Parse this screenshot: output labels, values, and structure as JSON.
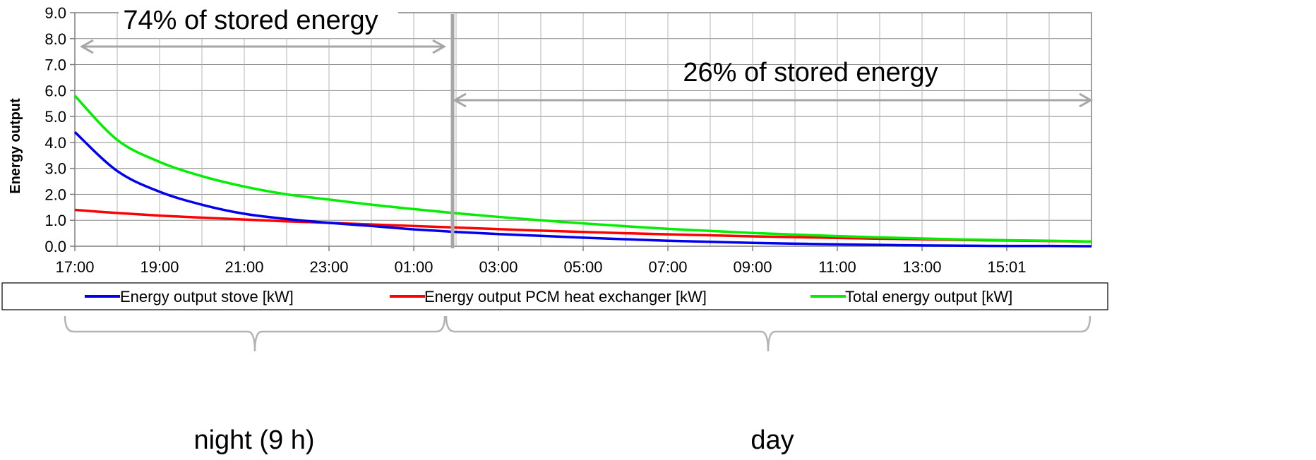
{
  "chart_data": {
    "type": "line",
    "x": [
      "17:00",
      "18:00",
      "19:00",
      "20:00",
      "21:00",
      "22:00",
      "23:00",
      "00:00",
      "01:00",
      "02:00",
      "03:00",
      "04:00",
      "05:00",
      "06:00",
      "07:00",
      "08:00",
      "09:00",
      "10:00",
      "11:00",
      "12:00",
      "13:00",
      "14:00",
      "15:01",
      "16:00",
      "17:00"
    ],
    "x_tick_labels": [
      "17:00",
      "19:00",
      "21:00",
      "23:00",
      "01:00",
      "03:00",
      "05:00",
      "07:00",
      "09:00",
      "11:00",
      "13:00",
      "15:01"
    ],
    "ylabel": "Energy output",
    "ylim": [
      0,
      9
    ],
    "y_tick_labels": [
      "0.0",
      "1.0",
      "2.0",
      "3.0",
      "4.0",
      "5.0",
      "6.0",
      "7.0",
      "8.0",
      "9.0"
    ],
    "grid": true,
    "legend_position": "bottom",
    "series": [
      {
        "name": "Energy output stove [kW]",
        "color": "#0000ee",
        "values": [
          4.4,
          2.9,
          2.1,
          1.6,
          1.25,
          1.05,
          0.9,
          0.78,
          0.65,
          0.55,
          0.47,
          0.4,
          0.33,
          0.27,
          0.21,
          0.17,
          0.13,
          0.1,
          0.07,
          0.05,
          0.03,
          0.02,
          0.01,
          0.01,
          0.0
        ]
      },
      {
        "name": "Energy output PCM heat exchanger [kW]",
        "color": "#ff0000",
        "values": [
          1.4,
          1.28,
          1.18,
          1.1,
          1.03,
          0.96,
          0.9,
          0.84,
          0.78,
          0.72,
          0.66,
          0.6,
          0.55,
          0.5,
          0.46,
          0.42,
          0.38,
          0.35,
          0.32,
          0.29,
          0.27,
          0.24,
          0.22,
          0.2,
          0.18
        ]
      },
      {
        "name": "Total energy output  [kW]",
        "color": "#00ee00",
        "values": [
          5.8,
          4.1,
          3.25,
          2.7,
          2.3,
          2.0,
          1.8,
          1.6,
          1.43,
          1.27,
          1.13,
          1.0,
          0.88,
          0.77,
          0.67,
          0.59,
          0.51,
          0.45,
          0.39,
          0.34,
          0.3,
          0.26,
          0.23,
          0.21,
          0.18
        ]
      }
    ],
    "annotations": {
      "night_share": "74% of stored energy",
      "day_share": "26% of stored energy",
      "night_label": "night (9 h)",
      "day_label": "day"
    }
  }
}
